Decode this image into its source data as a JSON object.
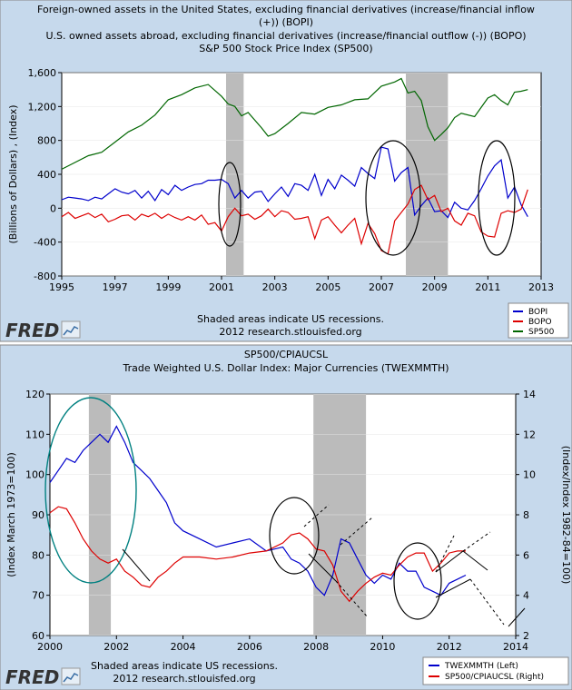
{
  "charts": [
    {
      "title_lines": [
        "Foreign-owned assets in the United States, excluding financial derivatives (increase/financial inflow",
        "(+)) (BOPI)",
        "U.S. owned assets abroad, excluding financial derivatives (increase/financial outflow (-)) (BOPO)",
        "S&P 500 Stock Price Index (SP500)"
      ],
      "ylabel": "(Billions of Dollars) , (Index)",
      "recession_note": "Shaded areas indicate US recessions.",
      "credit": "2012 research.stlouisfed.org",
      "logo": "FRED",
      "legend": [
        "BOPI",
        "BOPO",
        "SP500"
      ],
      "colors": {
        "BOPI": "#0000cc",
        "BOPO": "#dd0000",
        "SP500": "#006600",
        "background": "#c6d9ec",
        "recession": "#bbbbbb"
      }
    },
    {
      "title_lines": [
        "SP500/CPIAUCSL",
        "Trade Weighted U.S. Dollar Index: Major Currencies (TWEXMMTH)"
      ],
      "ylabel_left": "(Index March 1973=100)",
      "ylabel_right": "(Index/Index 1982-84=100)",
      "recession_note": "Shaded areas indicate US recessions.",
      "credit": "2012 research.stlouisfed.org",
      "logo": "FRED",
      "legend": [
        "TWEXMMTH (Left)",
        "SP500/CPIAUCSL (Right)"
      ],
      "colors": {
        "TWEX": "#0000cc",
        "SP500CPI": "#dd0000",
        "background": "#c6d9ec",
        "recession": "#bbbbbb",
        "ellipse_left": "#008080"
      }
    }
  ],
  "chart_data": [
    {
      "type": "line",
      "x_range": [
        1995,
        2013
      ],
      "ylim": [
        -800,
        1600
      ],
      "x_ticks": [
        "1995",
        "1997",
        "1999",
        "2001",
        "2003",
        "2005",
        "2007",
        "2009",
        "2011",
        "2013"
      ],
      "y_ticks": [
        "-800",
        "-400",
        "0",
        "400",
        "800",
        "1,200",
        "1,600"
      ],
      "recessions": [
        [
          2001.17,
          2001.83
        ],
        [
          2007.92,
          2009.5
        ]
      ],
      "series": [
        {
          "name": "BOPI",
          "x": [
            1995,
            1995.25,
            1995.5,
            1995.75,
            1996,
            1996.25,
            1996.5,
            1996.75,
            1997,
            1997.25,
            1997.5,
            1997.75,
            1998,
            1998.25,
            1998.5,
            1998.75,
            1999,
            1999.25,
            1999.5,
            1999.75,
            2000,
            2000.25,
            2000.5,
            2000.75,
            2001,
            2001.25,
            2001.5,
            2001.75,
            2002,
            2002.25,
            2002.5,
            2002.75,
            2003,
            2003.25,
            2003.5,
            2003.75,
            2004,
            2004.25,
            2004.5,
            2004.75,
            2005,
            2005.25,
            2005.5,
            2005.75,
            2006,
            2006.25,
            2006.5,
            2006.75,
            2007,
            2007.25,
            2007.5,
            2007.75,
            2008,
            2008.25,
            2008.5,
            2008.75,
            2009,
            2009.25,
            2009.5,
            2009.75,
            2010,
            2010.25,
            2010.5,
            2010.75,
            2011,
            2011.25,
            2011.5,
            2011.75,
            2012,
            2012.25,
            2012.5
          ],
          "y": [
            100,
            130,
            120,
            110,
            90,
            130,
            110,
            170,
            230,
            190,
            170,
            210,
            120,
            200,
            90,
            220,
            160,
            270,
            210,
            250,
            280,
            290,
            330,
            330,
            340,
            290,
            120,
            210,
            120,
            190,
            200,
            80,
            170,
            250,
            140,
            290,
            270,
            210,
            400,
            150,
            340,
            230,
            390,
            330,
            260,
            480,
            410,
            350,
            720,
            700,
            320,
            420,
            480,
            -80,
            30,
            120,
            -40,
            -30,
            -110,
            70,
            0,
            -20,
            90,
            230,
            380,
            500,
            570,
            120,
            250,
            40,
            -100
          ]
        },
        {
          "name": "BOPO",
          "x": [
            1995,
            1995.25,
            1995.5,
            1995.75,
            1996,
            1996.25,
            1996.5,
            1996.75,
            1997,
            1997.25,
            1997.5,
            1997.75,
            1998,
            1998.25,
            1998.5,
            1998.75,
            1999,
            1999.25,
            1999.5,
            1999.75,
            2000,
            2000.25,
            2000.5,
            2000.75,
            2001,
            2001.25,
            2001.5,
            2001.75,
            2002,
            2002.25,
            2002.5,
            2002.75,
            2003,
            2003.25,
            2003.5,
            2003.75,
            2004,
            2004.25,
            2004.5,
            2004.75,
            2005,
            2005.25,
            2005.5,
            2005.75,
            2006,
            2006.25,
            2006.5,
            2006.75,
            2007,
            2007.25,
            2007.5,
            2007.75,
            2008,
            2008.25,
            2008.5,
            2008.75,
            2009,
            2009.25,
            2009.5,
            2009.75,
            2010,
            2010.25,
            2010.5,
            2010.75,
            2011,
            2011.25,
            2011.5,
            2011.75,
            2012,
            2012.25,
            2012.5
          ],
          "y": [
            -100,
            -50,
            -120,
            -90,
            -60,
            -110,
            -70,
            -160,
            -130,
            -90,
            -80,
            -140,
            -70,
            -100,
            -60,
            -120,
            -70,
            -110,
            -140,
            -100,
            -140,
            -80,
            -190,
            -170,
            -270,
            -100,
            0,
            -90,
            -70,
            -130,
            -90,
            -10,
            -100,
            -30,
            -50,
            -130,
            -120,
            -100,
            -360,
            -140,
            -100,
            -200,
            -290,
            -200,
            -120,
            -420,
            -180,
            -300,
            -500,
            -540,
            -150,
            -50,
            50,
            220,
            270,
            100,
            150,
            -40,
            0,
            -150,
            -200,
            -60,
            -90,
            -280,
            -330,
            -340,
            -60,
            -30,
            -50,
            -10,
            220
          ]
        },
        {
          "name": "SP500",
          "x": [
            1995,
            1995.5,
            1996,
            1996.5,
            1997,
            1997.5,
            1998,
            1998.5,
            1999,
            1999.5,
            2000,
            2000.5,
            2001,
            2001.25,
            2001.5,
            2001.75,
            2002,
            2002.5,
            2002.75,
            2003,
            2003.5,
            2004,
            2004.5,
            2005,
            2005.5,
            2006,
            2006.5,
            2007,
            2007.5,
            2007.75,
            2008,
            2008.25,
            2008.5,
            2008.75,
            2009,
            2009.25,
            2009.5,
            2009.75,
            2010,
            2010.5,
            2011,
            2011.25,
            2011.5,
            2011.75,
            2012,
            2012.25,
            2012.5
          ],
          "y": [
            460,
            540,
            620,
            660,
            780,
            900,
            980,
            1100,
            1280,
            1340,
            1420,
            1460,
            1320,
            1230,
            1200,
            1090,
            1130,
            950,
            850,
            880,
            1000,
            1130,
            1110,
            1190,
            1220,
            1280,
            1290,
            1440,
            1490,
            1530,
            1360,
            1380,
            1270,
            960,
            800,
            870,
            950,
            1070,
            1120,
            1080,
            1300,
            1340,
            1270,
            1220,
            1370,
            1380,
            1400
          ]
        }
      ]
    },
    {
      "type": "line",
      "x_range": [
        2000,
        2014
      ],
      "ylim_left": [
        60,
        120
      ],
      "ylim_right": [
        2,
        14
      ],
      "x_ticks": [
        "2000",
        "2002",
        "2004",
        "2006",
        "2008",
        "2010",
        "2012",
        "2014"
      ],
      "y_ticks_left": [
        "60",
        "70",
        "80",
        "90",
        "100",
        "110",
        "120"
      ],
      "y_ticks_right": [
        "2",
        "4",
        "6",
        "8",
        "10",
        "12",
        "14"
      ],
      "recessions": [
        [
          2001.17,
          2001.83
        ],
        [
          2007.92,
          2009.5
        ]
      ],
      "series": [
        {
          "name": "TWEXMMTH (Left)",
          "axis": "left",
          "x": [
            2000,
            2000.25,
            2000.5,
            2000.75,
            2001,
            2001.25,
            2001.5,
            2001.75,
            2002,
            2002.25,
            2002.5,
            2002.75,
            2003,
            2003.25,
            2003.5,
            2003.75,
            2004,
            2004.5,
            2005,
            2005.5,
            2006,
            2006.5,
            2007,
            2007.25,
            2007.5,
            2007.75,
            2008,
            2008.25,
            2008.5,
            2008.75,
            2009,
            2009.25,
            2009.5,
            2009.75,
            2010,
            2010.25,
            2010.5,
            2010.75,
            2011,
            2011.25,
            2011.5,
            2011.75,
            2012,
            2012.25,
            2012.5
          ],
          "y": [
            98,
            101,
            104,
            103,
            106,
            108,
            110,
            108,
            112,
            108,
            103,
            101,
            99,
            96,
            93,
            88,
            86,
            84,
            82,
            83,
            84,
            81,
            82,
            79,
            78,
            76,
            72,
            70,
            75,
            84,
            83,
            79,
            75,
            73,
            75,
            74,
            78,
            76,
            76,
            72,
            71,
            70,
            73,
            74,
            75
          ]
        },
        {
          "name": "SP500/CPIAUCSL (Right)",
          "axis": "right",
          "x": [
            2000,
            2000.25,
            2000.5,
            2000.75,
            2001,
            2001.25,
            2001.5,
            2001.75,
            2002,
            2002.25,
            2002.5,
            2002.75,
            2003,
            2003.25,
            2003.5,
            2003.75,
            2004,
            2004.5,
            2005,
            2005.5,
            2006,
            2006.5,
            2007,
            2007.25,
            2007.5,
            2007.75,
            2008,
            2008.25,
            2008.5,
            2008.75,
            2009,
            2009.25,
            2009.5,
            2009.75,
            2010,
            2010.25,
            2010.5,
            2010.75,
            2011,
            2011.25,
            2011.5,
            2011.75,
            2012,
            2012.25,
            2012.5
          ],
          "y": [
            8.1,
            8.4,
            8.3,
            7.6,
            6.8,
            6.2,
            5.8,
            5.6,
            5.8,
            5.2,
            4.9,
            4.5,
            4.4,
            4.9,
            5.2,
            5.6,
            5.9,
            5.9,
            5.8,
            5.9,
            6.1,
            6.2,
            6.6,
            7.0,
            7.1,
            6.8,
            6.3,
            6.2,
            5.5,
            4.2,
            3.7,
            4.2,
            4.6,
            4.9,
            5.1,
            5.0,
            5.5,
            5.9,
            6.1,
            6.1,
            5.2,
            5.6,
            6.1,
            6.2,
            6.2
          ]
        }
      ]
    }
  ]
}
